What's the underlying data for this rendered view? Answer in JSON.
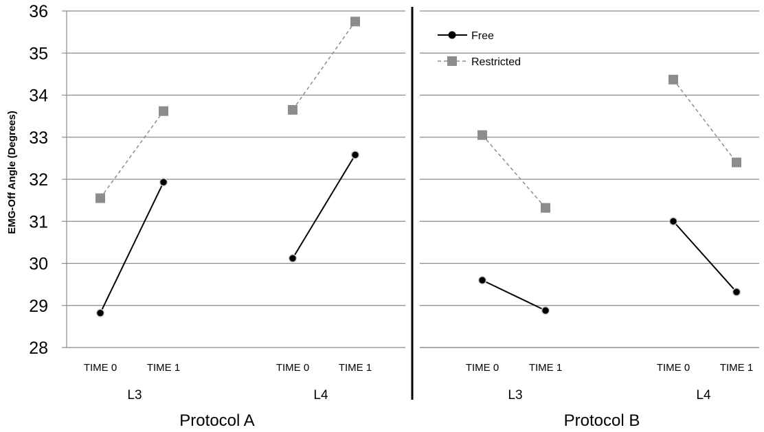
{
  "chart_data": {
    "type": "line",
    "ylabel": "EMG-Off Angle (Degrees)",
    "ylim": [
      28,
      36
    ],
    "yticks": [
      28,
      29,
      30,
      31,
      32,
      33,
      34,
      35,
      36
    ],
    "grid": true,
    "legend_position": "top-left of Protocol B panel",
    "time_labels": [
      "TIME 0",
      "TIME 1"
    ],
    "levels": [
      "L3",
      "L4"
    ],
    "series": [
      {
        "name": "Free",
        "style": "solid-circle",
        "color": "#000000"
      },
      {
        "name": "Restricted",
        "style": "dashed-square",
        "color": "#8c8c8c"
      }
    ],
    "panels": [
      {
        "label": "Protocol A",
        "groups": [
          {
            "label": "L3",
            "Free": [
              28.82,
              31.93
            ],
            "Restricted": [
              31.55,
              33.62
            ]
          },
          {
            "label": "L4",
            "Free": [
              30.12,
              32.58
            ],
            "Restricted": [
              33.65,
              35.75
            ]
          }
        ]
      },
      {
        "label": "Protocol B",
        "groups": [
          {
            "label": "L3",
            "Free": [
              29.6,
              28.88
            ],
            "Restricted": [
              33.05,
              31.32
            ]
          },
          {
            "label": "L4",
            "Free": [
              31.0,
              29.32
            ],
            "Restricted": [
              34.37,
              32.4
            ]
          }
        ]
      }
    ]
  },
  "colors": {
    "free": "#000000",
    "restricted": "#8c8c8c",
    "grid": "#8a8a8a",
    "divider": "#000000"
  }
}
